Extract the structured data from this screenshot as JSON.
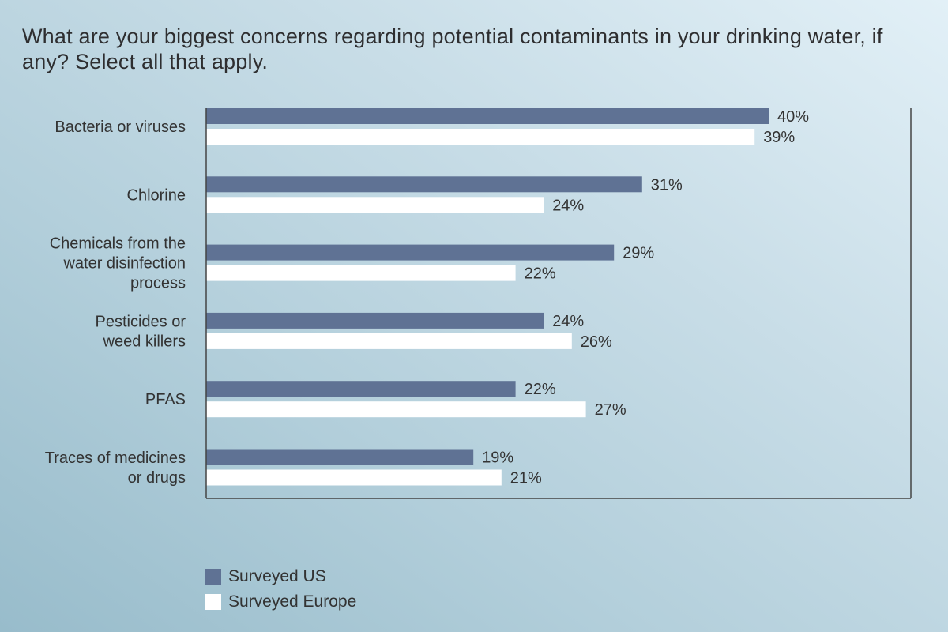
{
  "chart_data": {
    "type": "bar",
    "orientation": "horizontal",
    "title": "What are your biggest concerns regarding potential contaminants in your drinking water, if any? Select all that apply.",
    "xlabel": "",
    "ylabel": "",
    "xlim": [
      0,
      50
    ],
    "grid": false,
    "legend_position": "bottom-left",
    "value_suffix": "%",
    "categories": [
      [
        "Bacteria or viruses"
      ],
      [
        "Chlorine"
      ],
      [
        "Chemicals from the",
        "water disinfection",
        "process"
      ],
      [
        "Pesticides or",
        "weed killers"
      ],
      [
        "PFAS"
      ],
      [
        "Traces of medicines",
        "or drugs"
      ]
    ],
    "series": [
      {
        "name": "Surveyed US",
        "color": "#5f7294",
        "values": [
          40,
          31,
          29,
          24,
          22,
          19
        ]
      },
      {
        "name": "Surveyed Europe",
        "color": "#ffffff",
        "values": [
          39,
          24,
          22,
          26,
          27,
          21
        ]
      }
    ]
  },
  "colors": {
    "axis": "#444444",
    "text": "#333333"
  }
}
